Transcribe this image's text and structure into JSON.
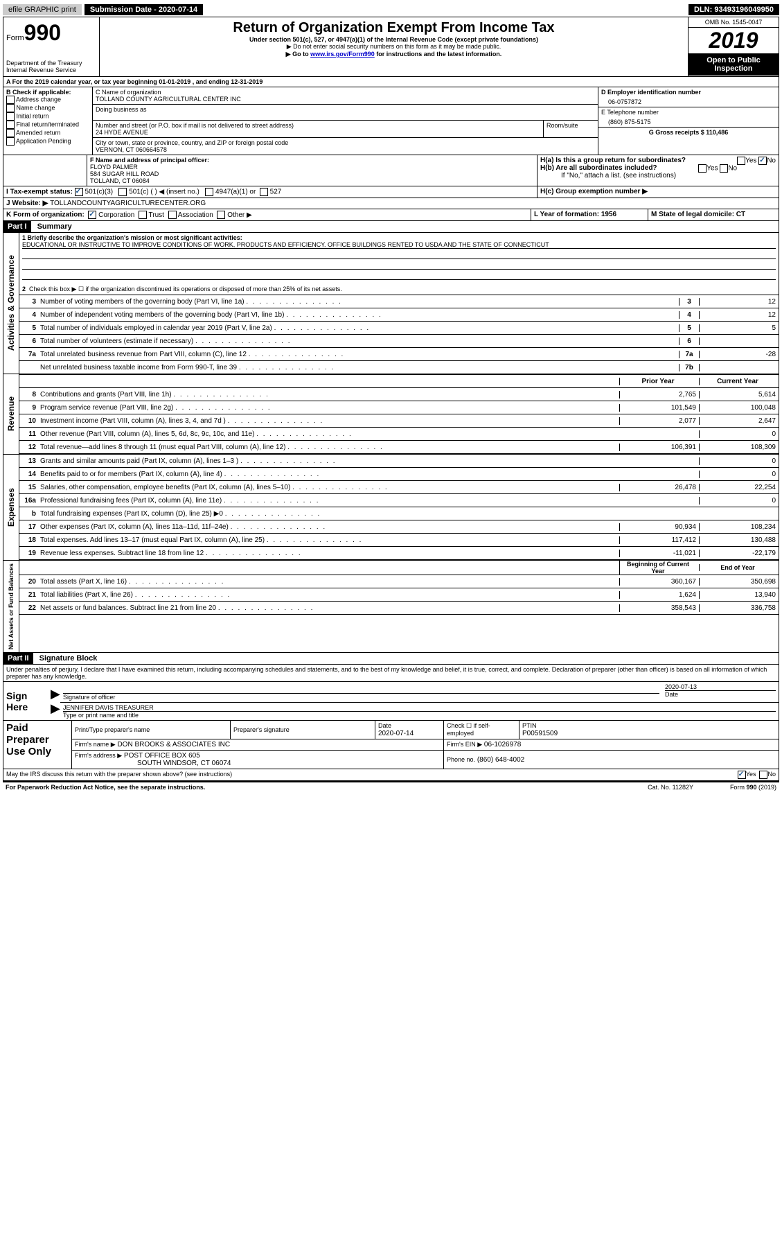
{
  "topbar": {
    "efile": "efile GRAPHIC print",
    "submission": "Submission Date - 2020-07-14",
    "dln": "DLN: 93493196049950"
  },
  "header": {
    "form_label": "Form",
    "form_num": "990",
    "title": "Return of Organization Exempt From Income Tax",
    "subtitle": "Under section 501(c), 527, or 4947(a)(1) of the Internal Revenue Code (except private foundations)",
    "note1": "▶ Do not enter social security numbers on this form as it may be made public.",
    "note2_pre": "▶ Go to ",
    "note2_link": "www.irs.gov/Form990",
    "note2_post": " for instructions and the latest information.",
    "dept": "Department of the Treasury\nInternal Revenue Service",
    "omb": "OMB No. 1545-0047",
    "year": "2019",
    "open": "Open to Public Inspection"
  },
  "sectionA": {
    "line": "A   For the 2019 calendar year, or tax year beginning 01-01-2019    , and ending 12-31-2019"
  },
  "sectionB": {
    "label": "B Check if applicable:",
    "opts": [
      "Address change",
      "Name change",
      "Initial return",
      "Final return/terminated",
      "Amended return",
      "Application Pending"
    ]
  },
  "sectionC": {
    "label": "C Name of organization",
    "name": "TOLLAND COUNTY AGRICULTURAL CENTER INC",
    "dba_label": "Doing business as",
    "addr_label": "Number and street (or P.O. box if mail is not delivered to street address)",
    "room_label": "Room/suite",
    "addr": "24 HYDE AVENUE",
    "city_label": "City or town, state or province, country, and ZIP or foreign postal code",
    "city": "VERNON, CT  060664578"
  },
  "sectionD": {
    "label": "D Employer identification number",
    "val": "06-0757872"
  },
  "sectionE": {
    "label": "E Telephone number",
    "val": "(860) 875-5175"
  },
  "sectionG": {
    "label": "G Gross receipts $ 110,486"
  },
  "sectionF": {
    "label": "F  Name and address of principal officer:",
    "name": "FLOYD PALMER",
    "addr1": "584 SUGAR HILL ROAD",
    "addr2": "TOLLAND, CT  06084"
  },
  "sectionH": {
    "a": "H(a)  Is this a group return for subordinates?",
    "b": "H(b)  Are all subordinates included?",
    "note": "If \"No,\" attach a list. (see instructions)",
    "c": "H(c)  Group exemption number ▶"
  },
  "sectionI": {
    "label": "I   Tax-exempt status:",
    "opt1": "501(c)(3)",
    "opt2": "501(c) (  ) ◀ (insert no.)",
    "opt3": "4947(a)(1) or",
    "opt4": "527"
  },
  "sectionJ": {
    "label": "J   Website: ▶",
    "val": "TOLLANDCOUNTYAGRICULTURECENTER.ORG"
  },
  "sectionK": {
    "label": "K Form of organization:",
    "opts": [
      "Corporation",
      "Trust",
      "Association",
      "Other ▶"
    ]
  },
  "sectionL": {
    "label": "L Year of formation: 1956"
  },
  "sectionM": {
    "label": "M State of legal domicile: CT"
  },
  "part1": {
    "header": "Part I",
    "title": "Summary",
    "line1_label": "1  Briefly describe the organization's mission or most significant activities:",
    "line1_text": "EDUCATIONAL OR INSTRUCTIVE TO IMPROVE CONDITIONS OF WORK, PRODUCTS AND EFFICIENCY. OFFICE BUILDINGS RENTED TO USDA AND THE STATE OF CONNECTICUT",
    "line2": "Check this box ▶ ☐  if the organization discontinued its operations or disposed of more than 25% of its net assets.",
    "lines_simple": [
      {
        "n": "3",
        "t": "Number of voting members of the governing body (Part VI, line 1a)",
        "box": "3",
        "v": "12"
      },
      {
        "n": "4",
        "t": "Number of independent voting members of the governing body (Part VI, line 1b)",
        "box": "4",
        "v": "12"
      },
      {
        "n": "5",
        "t": "Total number of individuals employed in calendar year 2019 (Part V, line 2a)",
        "box": "5",
        "v": "5"
      },
      {
        "n": "6",
        "t": "Total number of volunteers (estimate if necessary)",
        "box": "6",
        "v": ""
      },
      {
        "n": "7a",
        "t": "Total unrelated business revenue from Part VIII, column (C), line 12",
        "box": "7a",
        "v": "-28"
      },
      {
        "n": "",
        "t": "Net unrelated business taxable income from Form 990-T, line 39",
        "box": "7b",
        "v": ""
      }
    ],
    "col_prior": "Prior Year",
    "col_current": "Current Year",
    "revenue": [
      {
        "n": "8",
        "t": "Contributions and grants (Part VIII, line 1h)",
        "p": "2,765",
        "c": "5,614"
      },
      {
        "n": "9",
        "t": "Program service revenue (Part VIII, line 2g)",
        "p": "101,549",
        "c": "100,048"
      },
      {
        "n": "10",
        "t": "Investment income (Part VIII, column (A), lines 3, 4, and 7d )",
        "p": "2,077",
        "c": "2,647"
      },
      {
        "n": "11",
        "t": "Other revenue (Part VIII, column (A), lines 5, 6d, 8c, 9c, 10c, and 11e)",
        "p": "",
        "c": "0"
      },
      {
        "n": "12",
        "t": "Total revenue—add lines 8 through 11 (must equal Part VIII, column (A), line 12)",
        "p": "106,391",
        "c": "108,309"
      }
    ],
    "expenses": [
      {
        "n": "13",
        "t": "Grants and similar amounts paid (Part IX, column (A), lines 1–3 )",
        "p": "",
        "c": "0"
      },
      {
        "n": "14",
        "t": "Benefits paid to or for members (Part IX, column (A), line 4)",
        "p": "",
        "c": "0"
      },
      {
        "n": "15",
        "t": "Salaries, other compensation, employee benefits (Part IX, column (A), lines 5–10)",
        "p": "26,478",
        "c": "22,254"
      },
      {
        "n": "16a",
        "t": "Professional fundraising fees (Part IX, column (A), line 11e)",
        "p": "",
        "c": "0"
      },
      {
        "n": "b",
        "t": "Total fundraising expenses (Part IX, column (D), line 25) ▶0",
        "p": "GRAY",
        "c": "GRAY"
      },
      {
        "n": "17",
        "t": "Other expenses (Part IX, column (A), lines 11a–11d, 11f–24e)",
        "p": "90,934",
        "c": "108,234"
      },
      {
        "n": "18",
        "t": "Total expenses. Add lines 13–17 (must equal Part IX, column (A), line 25)",
        "p": "117,412",
        "c": "130,488"
      },
      {
        "n": "19",
        "t": "Revenue less expenses. Subtract line 18 from line 12",
        "p": "-11,021",
        "c": "-22,179"
      }
    ],
    "col_begin": "Beginning of Current Year",
    "col_end": "End of Year",
    "netassets": [
      {
        "n": "20",
        "t": "Total assets (Part X, line 16)",
        "p": "360,167",
        "c": "350,698"
      },
      {
        "n": "21",
        "t": "Total liabilities (Part X, line 26)",
        "p": "1,624",
        "c": "13,940"
      },
      {
        "n": "22",
        "t": "Net assets or fund balances. Subtract line 21 from line 20",
        "p": "358,543",
        "c": "336,758"
      }
    ]
  },
  "part2": {
    "header": "Part II",
    "title": "Signature Block",
    "declaration": "Under penalties of perjury, I declare that I have examined this return, including accompanying schedules and statements, and to the best of my knowledge and belief, it is true, correct, and complete. Declaration of preparer (other than officer) is based on all information of which preparer has any knowledge."
  },
  "sign": {
    "label": "Sign Here",
    "sig_label": "Signature of officer",
    "date": "2020-07-13",
    "date_label": "Date",
    "name": "JENNIFER DAVIS  TREASURER",
    "name_label": "Type or print name and title"
  },
  "preparer": {
    "label": "Paid Preparer Use Only",
    "name_label": "Print/Type preparer's name",
    "sig_label": "Preparer's signature",
    "date_label": "Date",
    "date": "2020-07-14",
    "check_label": "Check ☐ if self-employed",
    "ptin_label": "PTIN",
    "ptin": "P00591509",
    "firm_name_label": "Firm's name    ▶",
    "firm_name": "DON BROOKS & ASSOCIATES INC",
    "firm_ein_label": "Firm's EIN ▶",
    "firm_ein": "06-1026978",
    "firm_addr_label": "Firm's address ▶",
    "firm_addr1": "POST OFFICE BOX 605",
    "firm_addr2": "SOUTH WINDSOR, CT  06074",
    "phone_label": "Phone no.",
    "phone": "(860) 648-4002"
  },
  "footer": {
    "discuss": "May the IRS discuss this return with the preparer shown above? (see instructions)",
    "paperwork": "For Paperwork Reduction Act Notice, see the separate instructions.",
    "cat": "Cat. No. 11282Y",
    "form": "Form 990 (2019)"
  },
  "labels": {
    "activities": "Activities & Governance",
    "revenue": "Revenue",
    "expenses": "Expenses",
    "netassets": "Net Assets or Fund Balances"
  }
}
